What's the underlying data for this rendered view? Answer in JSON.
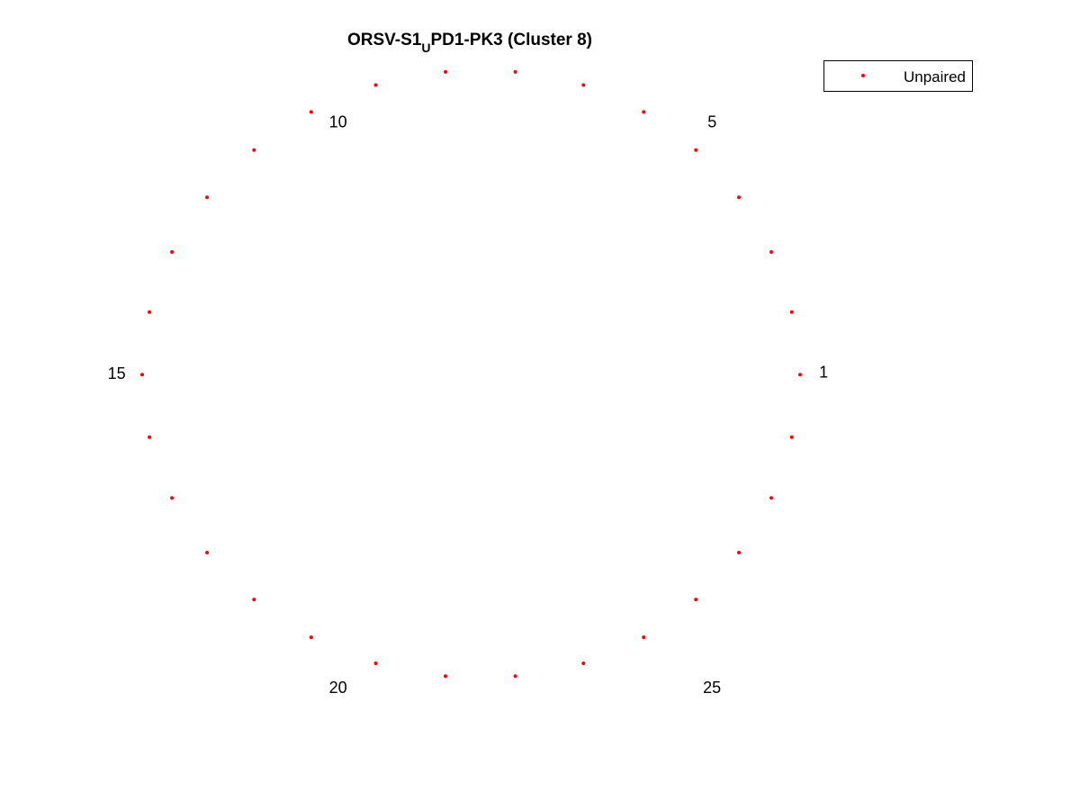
{
  "chart_data": {
    "type": "scatter",
    "title": {
      "prefix": "ORSV-S1",
      "subscript": "U",
      "suffix": "PD1-PK3 (Cluster 8)"
    },
    "xlabel": "",
    "ylabel": "",
    "grid": false,
    "axes_visible": false,
    "legend": {
      "placement": "top-right",
      "entries": [
        "Unpaired"
      ]
    },
    "series": [
      {
        "name": "Unpaired",
        "color": "#ff0000",
        "marker": "dot",
        "points": [
          {
            "x": 1.0,
            "y": 0.1
          },
          {
            "x": 0.975,
            "y": 0.3
          },
          {
            "x": 0.913,
            "y": 0.492
          },
          {
            "x": 0.815,
            "y": 0.667
          },
          {
            "x": 0.685,
            "y": 0.818
          },
          {
            "x": 0.527,
            "y": 0.94
          },
          {
            "x": 0.345,
            "y": 1.026
          },
          {
            "x": 0.139,
            "y": 1.068
          },
          {
            "x": -0.072,
            "y": 1.068
          },
          {
            "x": -0.283,
            "y": 1.026
          },
          {
            "x": -0.478,
            "y": 0.94
          },
          {
            "x": -0.651,
            "y": 0.818
          },
          {
            "x": -0.793,
            "y": 0.667
          },
          {
            "x": -0.899,
            "y": 0.492
          },
          {
            "x": -0.967,
            "y": 0.3
          },
          {
            "x": -0.989,
            "y": 0.1
          },
          {
            "x": -0.967,
            "y": -0.1
          },
          {
            "x": -0.899,
            "y": -0.294
          },
          {
            "x": -0.793,
            "y": -0.469
          },
          {
            "x": -0.651,
            "y": -0.619
          },
          {
            "x": -0.478,
            "y": -0.74
          },
          {
            "x": -0.283,
            "y": -0.823
          },
          {
            "x": -0.072,
            "y": -0.864
          },
          {
            "x": 0.139,
            "y": -0.864
          },
          {
            "x": 0.345,
            "y": -0.823
          },
          {
            "x": 0.527,
            "y": -0.74
          },
          {
            "x": 0.685,
            "y": -0.619
          },
          {
            "x": 0.815,
            "y": -0.469
          },
          {
            "x": 0.913,
            "y": -0.294
          },
          {
            "x": 0.975,
            "y": -0.1
          }
        ]
      }
    ],
    "point_labels": [
      {
        "index": 1,
        "text": "1",
        "x": 1.071,
        "y": 0.105
      },
      {
        "index": 5,
        "text": "5",
        "x": 0.734,
        "y": 0.905
      },
      {
        "index": 10,
        "text": "10",
        "x": -0.397,
        "y": 0.905
      },
      {
        "index": 15,
        "text": "15",
        "x": -1.066,
        "y": 0.1
      },
      {
        "index": 20,
        "text": "20",
        "x": -0.397,
        "y": -0.904
      },
      {
        "index": 25,
        "text": "25",
        "x": 0.734,
        "y": -0.904
      }
    ]
  }
}
